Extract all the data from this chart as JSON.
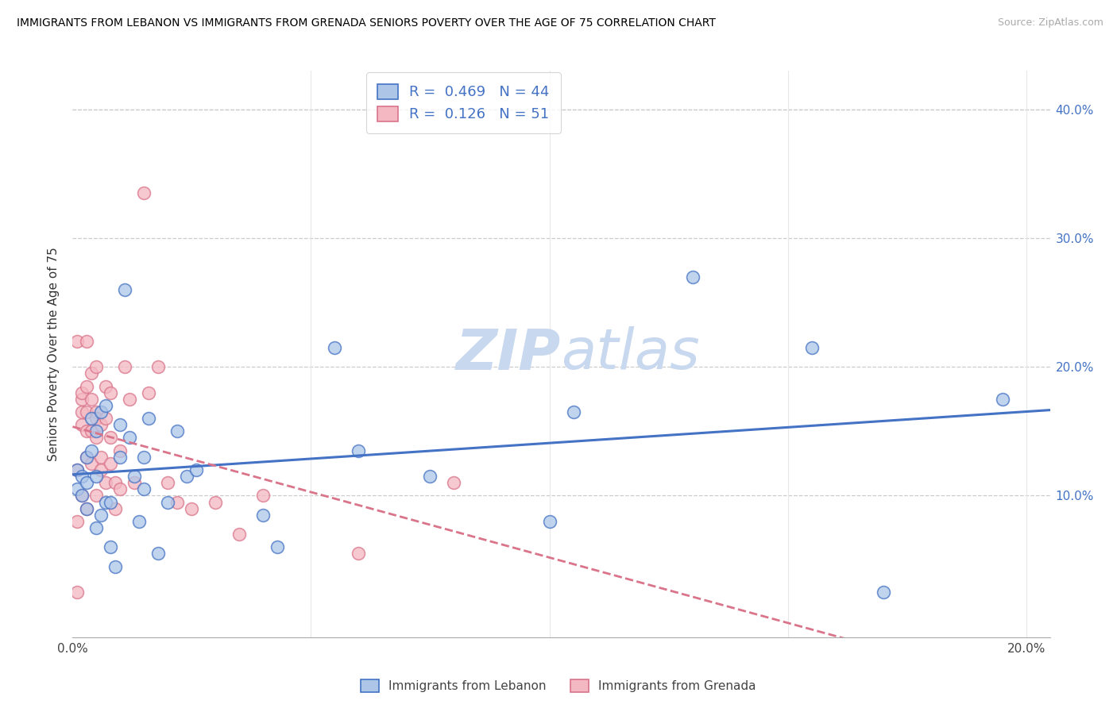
{
  "title": "IMMIGRANTS FROM LEBANON VS IMMIGRANTS FROM GRENADA SENIORS POVERTY OVER THE AGE OF 75 CORRELATION CHART",
  "source": "Source: ZipAtlas.com",
  "ylabel": "Seniors Poverty Over the Age of 75",
  "xlim": [
    0,
    0.205
  ],
  "ylim": [
    -0.01,
    0.43
  ],
  "lebanon_R": "0.469",
  "lebanon_N": "44",
  "grenada_R": "0.126",
  "grenada_N": "51",
  "lebanon_face_color": "#adc6e8",
  "grenada_face_color": "#f4b8c2",
  "lebanon_edge_color": "#4472c4",
  "grenada_edge_color": "#d9748a",
  "trend_lebanon_color": "#4472c4",
  "trend_grenada_color": "#d9748a",
  "watermark_color": "#c8d8ee",
  "lebanon_x": [
    0.001,
    0.001,
    0.002,
    0.002,
    0.003,
    0.003,
    0.003,
    0.004,
    0.004,
    0.005,
    0.005,
    0.005,
    0.006,
    0.006,
    0.007,
    0.007,
    0.008,
    0.008,
    0.009,
    0.01,
    0.01,
    0.011,
    0.012,
    0.013,
    0.014,
    0.015,
    0.015,
    0.016,
    0.018,
    0.02,
    0.022,
    0.024,
    0.026,
    0.04,
    0.043,
    0.055,
    0.06,
    0.075,
    0.1,
    0.105,
    0.13,
    0.155,
    0.17,
    0.195
  ],
  "lebanon_y": [
    0.12,
    0.105,
    0.1,
    0.115,
    0.13,
    0.09,
    0.11,
    0.16,
    0.135,
    0.15,
    0.115,
    0.075,
    0.165,
    0.085,
    0.17,
    0.095,
    0.095,
    0.06,
    0.045,
    0.155,
    0.13,
    0.26,
    0.145,
    0.115,
    0.08,
    0.13,
    0.105,
    0.16,
    0.055,
    0.095,
    0.15,
    0.115,
    0.12,
    0.085,
    0.06,
    0.215,
    0.135,
    0.115,
    0.08,
    0.165,
    0.27,
    0.215,
    0.025,
    0.175
  ],
  "grenada_x": [
    0.001,
    0.001,
    0.001,
    0.001,
    0.002,
    0.002,
    0.002,
    0.002,
    0.002,
    0.003,
    0.003,
    0.003,
    0.003,
    0.003,
    0.003,
    0.004,
    0.004,
    0.004,
    0.004,
    0.005,
    0.005,
    0.005,
    0.005,
    0.005,
    0.006,
    0.006,
    0.006,
    0.007,
    0.007,
    0.007,
    0.008,
    0.008,
    0.008,
    0.009,
    0.009,
    0.01,
    0.01,
    0.011,
    0.012,
    0.013,
    0.015,
    0.016,
    0.018,
    0.02,
    0.022,
    0.025,
    0.03,
    0.035,
    0.04,
    0.06,
    0.08
  ],
  "grenada_y": [
    0.025,
    0.08,
    0.12,
    0.22,
    0.155,
    0.175,
    0.18,
    0.1,
    0.165,
    0.09,
    0.13,
    0.15,
    0.165,
    0.185,
    0.22,
    0.125,
    0.15,
    0.175,
    0.195,
    0.1,
    0.145,
    0.165,
    0.16,
    0.2,
    0.12,
    0.13,
    0.155,
    0.11,
    0.16,
    0.185,
    0.125,
    0.145,
    0.18,
    0.09,
    0.11,
    0.105,
    0.135,
    0.2,
    0.175,
    0.11,
    0.335,
    0.18,
    0.2,
    0.11,
    0.095,
    0.09,
    0.095,
    0.07,
    0.1,
    0.055,
    0.11
  ]
}
